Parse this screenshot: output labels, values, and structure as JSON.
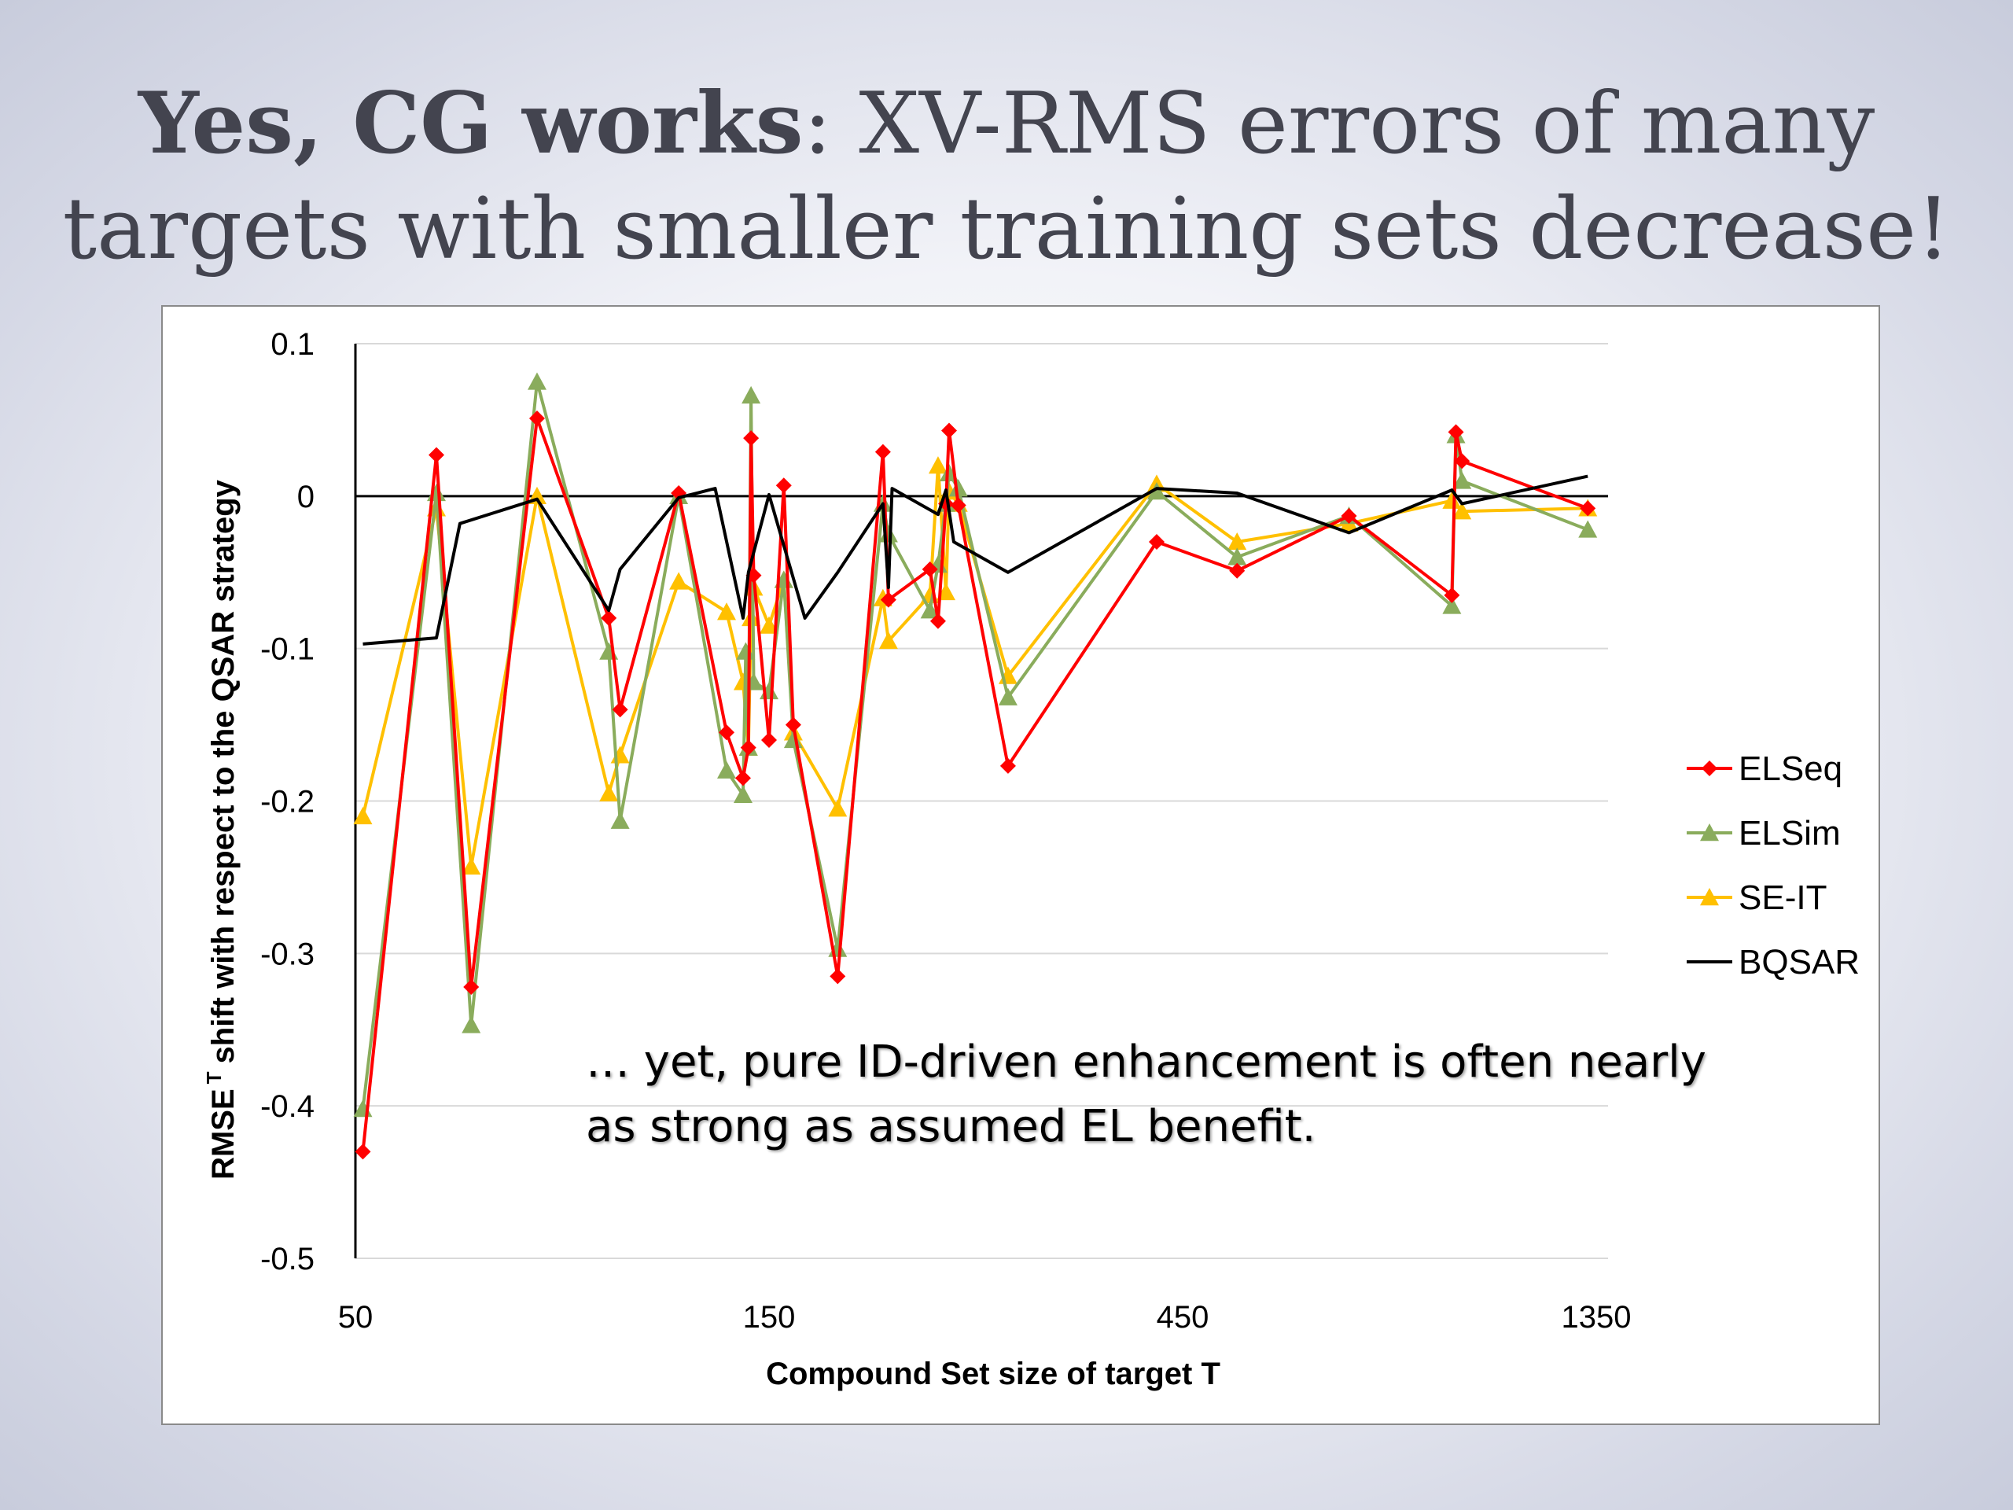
{
  "slide": {
    "title_bold": "Yes, CG works",
    "title_rest": ": XV-RMS errors of many targets with smaller training sets decrease!",
    "annotation_line1": "… yet, pure ID-driven enhancement is often nearly",
    "annotation_line2": "as strong as assumed EL benefit."
  },
  "chart_data": {
    "type": "line",
    "title": "",
    "xlabel": "Compound Set size of target T",
    "ylabel": "RMSE T shift with respect to the QSAR strategy",
    "ylabel_main": "RMSE",
    "ylabel_superscript": "T",
    "ylabel_rest": "shift with respect to the QSAR strategy",
    "ylim": [
      -0.5,
      0.1
    ],
    "y_ticks": [
      0.1,
      0,
      -0.1,
      -0.2,
      -0.3,
      -0.4,
      -0.5
    ],
    "y_tick_labels": [
      "0.1",
      "0",
      "-0.1",
      "-0.2",
      "-0.3",
      "-0.4",
      "-0.5"
    ],
    "x_scale": "log3",
    "x_ticks": [
      50,
      150,
      450,
      1350
    ],
    "x_tick_labels": [
      "50",
      "150",
      "450",
      "1350"
    ],
    "xlim": [
      50,
      1350
    ],
    "legend_position": "right",
    "grid": "horizontal",
    "series": [
      {
        "name": "ELSeq",
        "color": "#ff0000",
        "marker": "diamond",
        "points": [
          [
            51,
            -0.43
          ],
          [
            62,
            0.027
          ],
          [
            68,
            -0.322
          ],
          [
            81,
            0.051
          ],
          [
            98,
            -0.08
          ],
          [
            101,
            -0.14
          ],
          [
            118,
            0.002
          ],
          [
            134,
            -0.155
          ],
          [
            140,
            -0.185
          ],
          [
            142,
            -0.165
          ],
          [
            143,
            0.038
          ],
          [
            144,
            -0.052
          ],
          [
            150,
            -0.16
          ],
          [
            156,
            0.007
          ],
          [
            160,
            -0.15
          ],
          [
            180,
            -0.315
          ],
          [
            203,
            0.029
          ],
          [
            206,
            -0.068
          ],
          [
            230,
            -0.048
          ],
          [
            235,
            -0.082
          ],
          [
            240,
            -0.005
          ],
          [
            242,
            0.043
          ],
          [
            248,
            -0.006
          ],
          [
            283,
            -0.177
          ],
          [
            420,
            -0.03
          ],
          [
            520,
            -0.049
          ],
          [
            700,
            -0.013
          ],
          [
            920,
            -0.065
          ],
          [
            930,
            0.042
          ],
          [
            945,
            0.023
          ],
          [
            1320,
            -0.008
          ]
        ]
      },
      {
        "name": "ELSim",
        "color": "#8aac5c",
        "marker": "triangle",
        "points": [
          [
            51,
            -0.402
          ],
          [
            62,
            0.002
          ],
          [
            68,
            -0.347
          ],
          [
            81,
            0.075
          ],
          [
            98,
            -0.102
          ],
          [
            101,
            -0.213
          ],
          [
            118,
            0
          ],
          [
            134,
            -0.18
          ],
          [
            140,
            -0.196
          ],
          [
            141,
            -0.102
          ],
          [
            142,
            -0.165
          ],
          [
            143,
            0.066
          ],
          [
            144,
            -0.122
          ],
          [
            150,
            -0.128
          ],
          [
            156,
            -0.055
          ],
          [
            160,
            -0.16
          ],
          [
            180,
            -0.297
          ],
          [
            203,
            -0.005
          ],
          [
            206,
            -0.025
          ],
          [
            230,
            -0.075
          ],
          [
            235,
            -0.045
          ],
          [
            240,
            -0.005
          ],
          [
            242,
            0.015
          ],
          [
            248,
            0.005
          ],
          [
            283,
            -0.132
          ],
          [
            420,
            0.003
          ],
          [
            520,
            -0.04
          ],
          [
            700,
            -0.013
          ],
          [
            920,
            -0.072
          ],
          [
            930,
            0.04
          ],
          [
            945,
            0.01
          ],
          [
            1320,
            -0.022
          ]
        ]
      },
      {
        "name": "SE-IT",
        "color": "#ffc000",
        "marker": "triangle",
        "points": [
          [
            51,
            -0.21
          ],
          [
            62,
            -0.008
          ],
          [
            68,
            -0.243
          ],
          [
            81,
            0
          ],
          [
            98,
            -0.195
          ],
          [
            101,
            -0.17
          ],
          [
            118,
            -0.056
          ],
          [
            134,
            -0.076
          ],
          [
            140,
            -0.122
          ],
          [
            142,
            -0.165
          ],
          [
            143,
            -0.08
          ],
          [
            144,
            -0.06
          ],
          [
            150,
            -0.085
          ],
          [
            156,
            -0.055
          ],
          [
            160,
            -0.155
          ],
          [
            180,
            -0.205
          ],
          [
            203,
            -0.067
          ],
          [
            206,
            -0.095
          ],
          [
            230,
            -0.065
          ],
          [
            235,
            0.02
          ],
          [
            240,
            -0.063
          ],
          [
            242,
            0.003
          ],
          [
            248,
            -0.005
          ],
          [
            283,
            -0.118
          ],
          [
            420,
            0.008
          ],
          [
            520,
            -0.03
          ],
          [
            700,
            -0.018
          ],
          [
            920,
            -0.003
          ],
          [
            945,
            -0.01
          ],
          [
            1320,
            -0.008
          ]
        ]
      },
      {
        "name": "BQSAR",
        "color": "#000000",
        "marker": "none",
        "points": [
          [
            51,
            -0.097
          ],
          [
            62,
            -0.093
          ],
          [
            66,
            -0.018
          ],
          [
            81,
            -0.002
          ],
          [
            98,
            -0.075
          ],
          [
            101,
            -0.048
          ],
          [
            118,
            -0.001
          ],
          [
            130,
            0.005
          ],
          [
            140,
            -0.08
          ],
          [
            142,
            -0.05
          ],
          [
            150,
            0.001
          ],
          [
            165,
            -0.08
          ],
          [
            180,
            -0.05
          ],
          [
            203,
            -0.005
          ],
          [
            206,
            -0.06
          ],
          [
            208,
            0.005
          ],
          [
            235,
            -0.012
          ],
          [
            240,
            0.004
          ],
          [
            245,
            -0.03
          ],
          [
            283,
            -0.05
          ],
          [
            420,
            0.005
          ],
          [
            520,
            0.002
          ],
          [
            700,
            -0.024
          ],
          [
            920,
            0.004
          ],
          [
            945,
            -0.005
          ],
          [
            1320,
            0.013
          ]
        ]
      }
    ]
  }
}
